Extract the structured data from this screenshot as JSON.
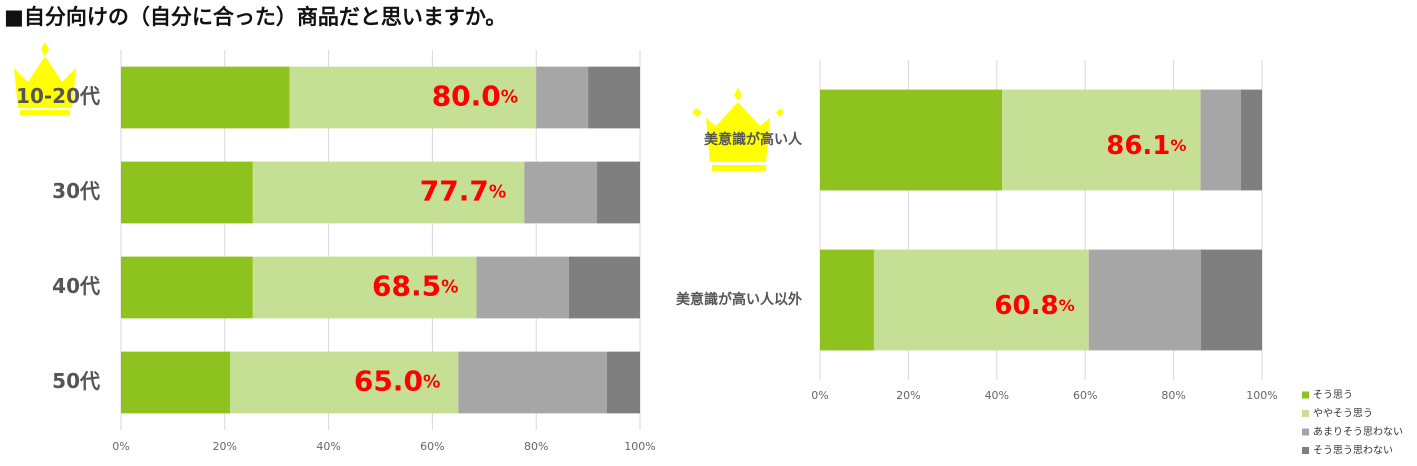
{
  "title": "■自分向けの（自分に合った）商品だと思いますか。",
  "chart_data": [
    {
      "type": "stacked_bar_h",
      "categories": [
        "10-20代",
        "30代",
        "40代",
        "50代"
      ],
      "series": [
        {
          "color": "#8dc21f",
          "values": [
            32.5,
            25.4,
            25.4,
            21.0
          ]
        },
        {
          "color": "#c5e095",
          "values": [
            47.5,
            52.3,
            43.1,
            44.0
          ]
        },
        {
          "color": "#a6a6a6",
          "values": [
            10.0,
            14.0,
            17.8,
            28.6
          ]
        },
        {
          "color": "#7f7f7f",
          "values": [
            10.0,
            8.3,
            13.7,
            6.4
          ]
        }
      ],
      "annotations": [
        "80.0%",
        "77.7%",
        "68.5%",
        "65.0%"
      ],
      "xlim": [
        0,
        100
      ],
      "xticks": [
        {
          "value": 0,
          "label": "0%"
        },
        {
          "value": 20,
          "label": "20%"
        },
        {
          "value": 40,
          "label": "40%"
        },
        {
          "value": 60,
          "label": "60%"
        },
        {
          "value": 80,
          "label": "80%"
        },
        {
          "value": 100,
          "label": "100%"
        }
      ],
      "grid": true
    },
    {
      "type": "stacked_bar_h",
      "categories": [
        "美意識が高い人",
        "美意識が高い人以外"
      ],
      "series": [
        {
          "name": "そう思う",
          "color": "#8dc21f",
          "values": [
            41.2,
            12.2
          ]
        },
        {
          "name": "ややそう思う",
          "color": "#c5e095",
          "values": [
            44.9,
            48.6
          ]
        },
        {
          "name": "あまりそう思わない",
          "color": "#a6a6a6",
          "values": [
            9.1,
            25.4
          ]
        },
        {
          "name": "そう思う思わない",
          "color": "#7f7f7f",
          "values": [
            4.8,
            13.8
          ]
        }
      ],
      "annotations": [
        "86.1%",
        "60.8%"
      ],
      "xlim": [
        0,
        100
      ],
      "xticks": [
        {
          "value": 0,
          "label": "0%"
        },
        {
          "value": 20,
          "label": "20%"
        },
        {
          "value": 40,
          "label": "40%"
        },
        {
          "value": 60,
          "label": "60%"
        },
        {
          "value": 80,
          "label": "80%"
        },
        {
          "value": 100,
          "label": "100%"
        }
      ],
      "grid": true
    }
  ]
}
